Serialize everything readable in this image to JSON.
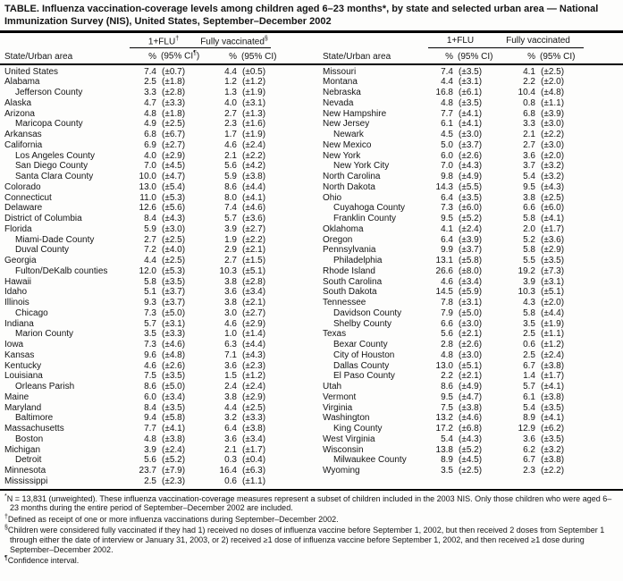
{
  "title": "TABLE. Influenza vaccination-coverage levels among children aged 6–23 months*, by state and selected urban area — National Immunization Survey (NIS), United States, September–December 2002",
  "header": {
    "state_label": "State/Urban area",
    "flu_left": {
      "label": "1+FLU",
      "sup": "†"
    },
    "fully_left": {
      "label": "Fully vaccinated",
      "sup": "§"
    },
    "flu_right": {
      "label": "1+FLU",
      "sup": ""
    },
    "fully_right": {
      "label": "Fully vaccinated",
      "sup": ""
    },
    "pct": "%",
    "ci_open": "(95% CI",
    "ci_sup": "¶",
    "ci_close": ")",
    "ci_plain": "(95% CI)"
  },
  "left_rows": [
    [
      "United States",
      0,
      "7.4",
      "(±0.7)",
      "4.4",
      "(±0.5)"
    ],
    [
      "Alabama",
      0,
      "2.5",
      "(±1.8)",
      "1.2",
      "(±1.2)"
    ],
    [
      "Jefferson County",
      1,
      "3.3",
      "(±2.8)",
      "1.3",
      "(±1.9)"
    ],
    [
      "Alaska",
      0,
      "4.7",
      "(±3.3)",
      "4.0",
      "(±3.1)"
    ],
    [
      "Arizona",
      0,
      "4.8",
      "(±1.8)",
      "2.7",
      "(±1.3)"
    ],
    [
      "Maricopa County",
      1,
      "4.9",
      "(±2.5)",
      "2.3",
      "(±1.6)"
    ],
    [
      "Arkansas",
      0,
      "6.8",
      "(±6.7)",
      "1.7",
      "(±1.9)"
    ],
    [
      "California",
      0,
      "6.9",
      "(±2.7)",
      "4.6",
      "(±2.4)"
    ],
    [
      "Los Angeles County",
      1,
      "4.0",
      "(±2.9)",
      "2.1",
      "(±2.2)"
    ],
    [
      "San Diego County",
      1,
      "7.0",
      "(±4.5)",
      "5.6",
      "(±4.2)"
    ],
    [
      "Santa Clara County",
      1,
      "10.0",
      "(±4.7)",
      "5.9",
      "(±3.8)"
    ],
    [
      "Colorado",
      0,
      "13.0",
      "(±5.4)",
      "8.6",
      "(±4.4)"
    ],
    [
      "Connecticut",
      0,
      "11.0",
      "(±5.3)",
      "8.0",
      "(±4.1)"
    ],
    [
      "Delaware",
      0,
      "12.6",
      "(±5.6)",
      "7.4",
      "(±4.6)"
    ],
    [
      "District of Columbia",
      0,
      "8.4",
      "(±4.3)",
      "5.7",
      "(±3.6)"
    ],
    [
      "Florida",
      0,
      "5.9",
      "(±3.0)",
      "3.9",
      "(±2.7)"
    ],
    [
      "Miami-Dade County",
      1,
      "2.7",
      "(±2.5)",
      "1.9",
      "(±2.2)"
    ],
    [
      "Duval County",
      1,
      "7.2",
      "(±4.0)",
      "2.9",
      "(±2.1)"
    ],
    [
      "Georgia",
      0,
      "4.4",
      "(±2.5)",
      "2.7",
      "(±1.5)"
    ],
    [
      "Fulton/DeKalb counties",
      1,
      "12.0",
      "(±5.3)",
      "10.3",
      "(±5.1)"
    ],
    [
      "Hawaii",
      0,
      "5.8",
      "(±3.5)",
      "3.8",
      "(±2.8)"
    ],
    [
      "Idaho",
      0,
      "5.1",
      "(±3.7)",
      "3.6",
      "(±3.4)"
    ],
    [
      "Illinois",
      0,
      "9.3",
      "(±3.7)",
      "3.8",
      "(±2.1)"
    ],
    [
      "Chicago",
      1,
      "7.3",
      "(±5.0)",
      "3.0",
      "(±2.7)"
    ],
    [
      "Indiana",
      0,
      "5.7",
      "(±3.1)",
      "4.6",
      "(±2.9)"
    ],
    [
      "Marion County",
      1,
      "3.5",
      "(±3.3)",
      "1.0",
      "(±1.4)"
    ],
    [
      "Iowa",
      0,
      "7.3",
      "(±4.6)",
      "6.3",
      "(±4.4)"
    ],
    [
      "Kansas",
      0,
      "9.6",
      "(±4.8)",
      "7.1",
      "(±4.3)"
    ],
    [
      "Kentucky",
      0,
      "4.6",
      "(±2.6)",
      "3.6",
      "(±2.3)"
    ],
    [
      "Louisiana",
      0,
      "7.5",
      "(±3.5)",
      "1.5",
      "(±1.2)"
    ],
    [
      "Orleans Parish",
      1,
      "8.6",
      "(±5.0)",
      "2.4",
      "(±2.4)"
    ],
    [
      "Maine",
      0,
      "6.0",
      "(±3.4)",
      "3.8",
      "(±2.9)"
    ],
    [
      "Maryland",
      0,
      "8.4",
      "(±3.5)",
      "4.4",
      "(±2.5)"
    ],
    [
      "Baltimore",
      1,
      "9.4",
      "(±5.8)",
      "3.2",
      "(±3.3)"
    ],
    [
      "Massachusetts",
      0,
      "7.7",
      "(±4.1)",
      "6.4",
      "(±3.8)"
    ],
    [
      "Boston",
      1,
      "4.8",
      "(±3.8)",
      "3.6",
      "(±3.4)"
    ],
    [
      "Michigan",
      0,
      "3.9",
      "(±2.4)",
      "2.1",
      "(±1.7)"
    ],
    [
      "Detroit",
      1,
      "5.6",
      "(±5.2)",
      "0.3",
      "(±0.4)"
    ],
    [
      "Minnesota",
      0,
      "23.7",
      "(±7.9)",
      "16.4",
      "(±6.3)"
    ],
    [
      "Mississippi",
      0,
      "2.5",
      "(±2.3)",
      "0.6",
      "(±1.1)"
    ]
  ],
  "right_rows": [
    [
      "Missouri",
      0,
      "7.4",
      "(±3.5)",
      "4.1",
      "(±2.5)"
    ],
    [
      "Montana",
      0,
      "4.4",
      "(±3.1)",
      "2.2",
      "(±2.0)"
    ],
    [
      "Nebraska",
      0,
      "16.8",
      "(±6.1)",
      "10.4",
      "(±4.8)"
    ],
    [
      "Nevada",
      0,
      "4.8",
      "(±3.5)",
      "0.8",
      "(±1.1)"
    ],
    [
      "New Hampshire",
      0,
      "7.7",
      "(±4.1)",
      "6.8",
      "(±3.9)"
    ],
    [
      "New Jersey",
      0,
      "6.1",
      "(±4.1)",
      "3.3",
      "(±3.0)"
    ],
    [
      "Newark",
      1,
      "4.5",
      "(±3.0)",
      "2.1",
      "(±2.2)"
    ],
    [
      "New Mexico",
      0,
      "5.0",
      "(±3.7)",
      "2.7",
      "(±3.0)"
    ],
    [
      "New York",
      0,
      "6.0",
      "(±2.6)",
      "3.6",
      "(±2.0)"
    ],
    [
      "New York City",
      1,
      "7.0",
      "(±4.3)",
      "3.7",
      "(±3.2)"
    ],
    [
      "North Carolina",
      0,
      "9.8",
      "(±4.9)",
      "5.4",
      "(±3.2)"
    ],
    [
      "North Dakota",
      0,
      "14.3",
      "(±5.5)",
      "9.5",
      "(±4.3)"
    ],
    [
      "Ohio",
      0,
      "6.4",
      "(±3.5)",
      "3.8",
      "(±2.5)"
    ],
    [
      "Cuyahoga County",
      1,
      "7.3",
      "(±6.0)",
      "6.6",
      "(±6.0)"
    ],
    [
      "Franklin County",
      1,
      "9.5",
      "(±5.2)",
      "5.8",
      "(±4.1)"
    ],
    [
      "Oklahoma",
      0,
      "4.1",
      "(±2.4)",
      "2.0",
      "(±1.7)"
    ],
    [
      "Oregon",
      0,
      "6.4",
      "(±3.9)",
      "5.2",
      "(±3.6)"
    ],
    [
      "Pennsylvania",
      0,
      "9.9",
      "(±3.7)",
      "5.8",
      "(±2.9)"
    ],
    [
      "Philadelphia",
      1,
      "13.1",
      "(±5.8)",
      "5.5",
      "(±3.5)"
    ],
    [
      "Rhode Island",
      0,
      "26.6",
      "(±8.0)",
      "19.2",
      "(±7.3)"
    ],
    [
      "South Carolina",
      0,
      "4.6",
      "(±3.4)",
      "3.9",
      "(±3.1)"
    ],
    [
      "South Dakota",
      0,
      "14.5",
      "(±5.9)",
      "10.3",
      "(±5.1)"
    ],
    [
      "Tennessee",
      0,
      "7.8",
      "(±3.1)",
      "4.3",
      "(±2.0)"
    ],
    [
      "Davidson County",
      1,
      "7.9",
      "(±5.0)",
      "5.8",
      "(±4.4)"
    ],
    [
      "Shelby County",
      1,
      "6.6",
      "(±3.0)",
      "3.5",
      "(±1.9)"
    ],
    [
      "Texas",
      0,
      "5.6",
      "(±2.1)",
      "2.5",
      "(±1.1)"
    ],
    [
      "Bexar County",
      1,
      "2.8",
      "(±2.6)",
      "0.6",
      "(±1.2)"
    ],
    [
      "City of Houston",
      1,
      "4.8",
      "(±3.0)",
      "2.5",
      "(±2.4)"
    ],
    [
      "Dallas County",
      1,
      "13.0",
      "(±5.1)",
      "6.7",
      "(±3.8)"
    ],
    [
      "El Paso County",
      1,
      "2.2",
      "(±2.1)",
      "1.4",
      "(±1.7)"
    ],
    [
      "Utah",
      0,
      "8.6",
      "(±4.9)",
      "5.7",
      "(±4.1)"
    ],
    [
      "Vermont",
      0,
      "9.5",
      "(±4.7)",
      "6.1",
      "(±3.8)"
    ],
    [
      "Virginia",
      0,
      "7.5",
      "(±3.8)",
      "5.4",
      "(±3.5)"
    ],
    [
      "Washington",
      0,
      "13.2",
      "(±4.6)",
      "8.9",
      "(±4.1)"
    ],
    [
      "King County",
      1,
      "17.2",
      "(±6.8)",
      "12.9",
      "(±6.2)"
    ],
    [
      "West Virginia",
      0,
      "5.4",
      "(±4.3)",
      "3.6",
      "(±3.5)"
    ],
    [
      "Wisconsin",
      0,
      "13.8",
      "(±5.2)",
      "6.2",
      "(±3.2)"
    ],
    [
      "Milwaukee County",
      1,
      "8.9",
      "(±4.5)",
      "6.7",
      "(±3.8)"
    ],
    [
      "Wyoming",
      0,
      "3.5",
      "(±2.5)",
      "2.3",
      "(±2.2)"
    ]
  ],
  "footnotes": [
    {
      "marker": "*",
      "text": "N = 13,831 (unweighted). These influenza vaccination-coverage measures represent a subset of children included in the 2003 NIS. Only those children who were aged 6–23 months during the entire period of September–December 2002 are included."
    },
    {
      "marker": "†",
      "text": "Defined as receipt of one or more influenza vaccinations during September–December 2002."
    },
    {
      "marker": "§",
      "text": "Children were considered fully vaccinated if they had 1) received no doses of influenza vaccine before September 1, 2002, but then received 2 doses from September 1 through either the date of interview or January 31, 2003, or 2) received ≥1 dose of influenza vaccine before September 1, 2002, and then received ≥1 dose during September–December 2002."
    },
    {
      "marker": "¶",
      "text": "Confidence interval."
    }
  ]
}
